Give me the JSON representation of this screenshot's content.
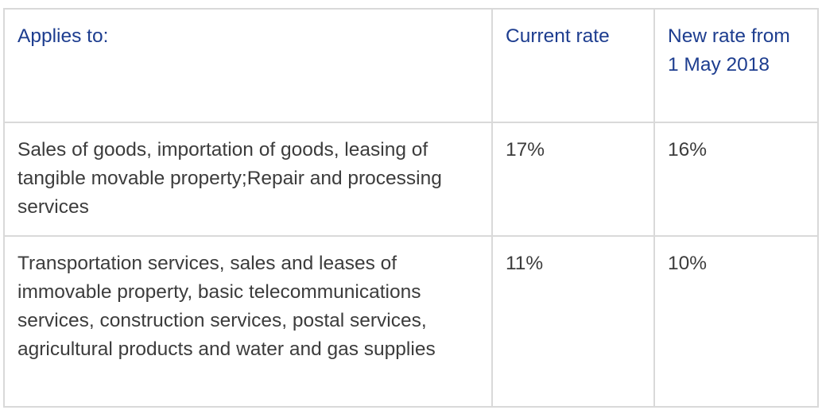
{
  "table": {
    "headers": {
      "applies_to": "Applies to:",
      "current_rate": "Current rate",
      "new_rate": "New rate from 1 May 2018"
    },
    "rows": [
      {
        "applies_to": "Sales of goods, importation of goods, leasing of tangible movable property;Repair and processing services",
        "current_rate": "17%",
        "new_rate": "16%"
      },
      {
        "applies_to": "Transportation services, sales and leases of immovable property, basic telecommunications services, construction services, postal services, agricultural products and water and gas supplies",
        "current_rate": "11%",
        "new_rate": "10%"
      }
    ]
  },
  "colors": {
    "header_text": "#1d3d8f",
    "body_text": "#3c3c3c",
    "border": "#d9d9d9"
  }
}
